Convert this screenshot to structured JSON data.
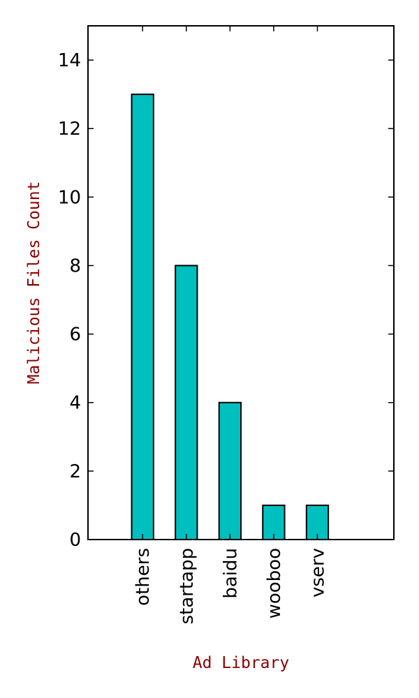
{
  "chart_data": {
    "type": "bar",
    "x_label": "Ad Library",
    "y_label": "Malicious Files Count",
    "categories": [
      "others",
      "startapp",
      "baidu",
      "wooboo",
      "vserv"
    ],
    "values": [
      13,
      8,
      4,
      1,
      1
    ],
    "color": "#00bfbf",
    "ylim": [
      0,
      15
    ],
    "yticks": [
      0,
      2,
      4,
      6,
      8,
      10,
      12,
      14
    ]
  }
}
